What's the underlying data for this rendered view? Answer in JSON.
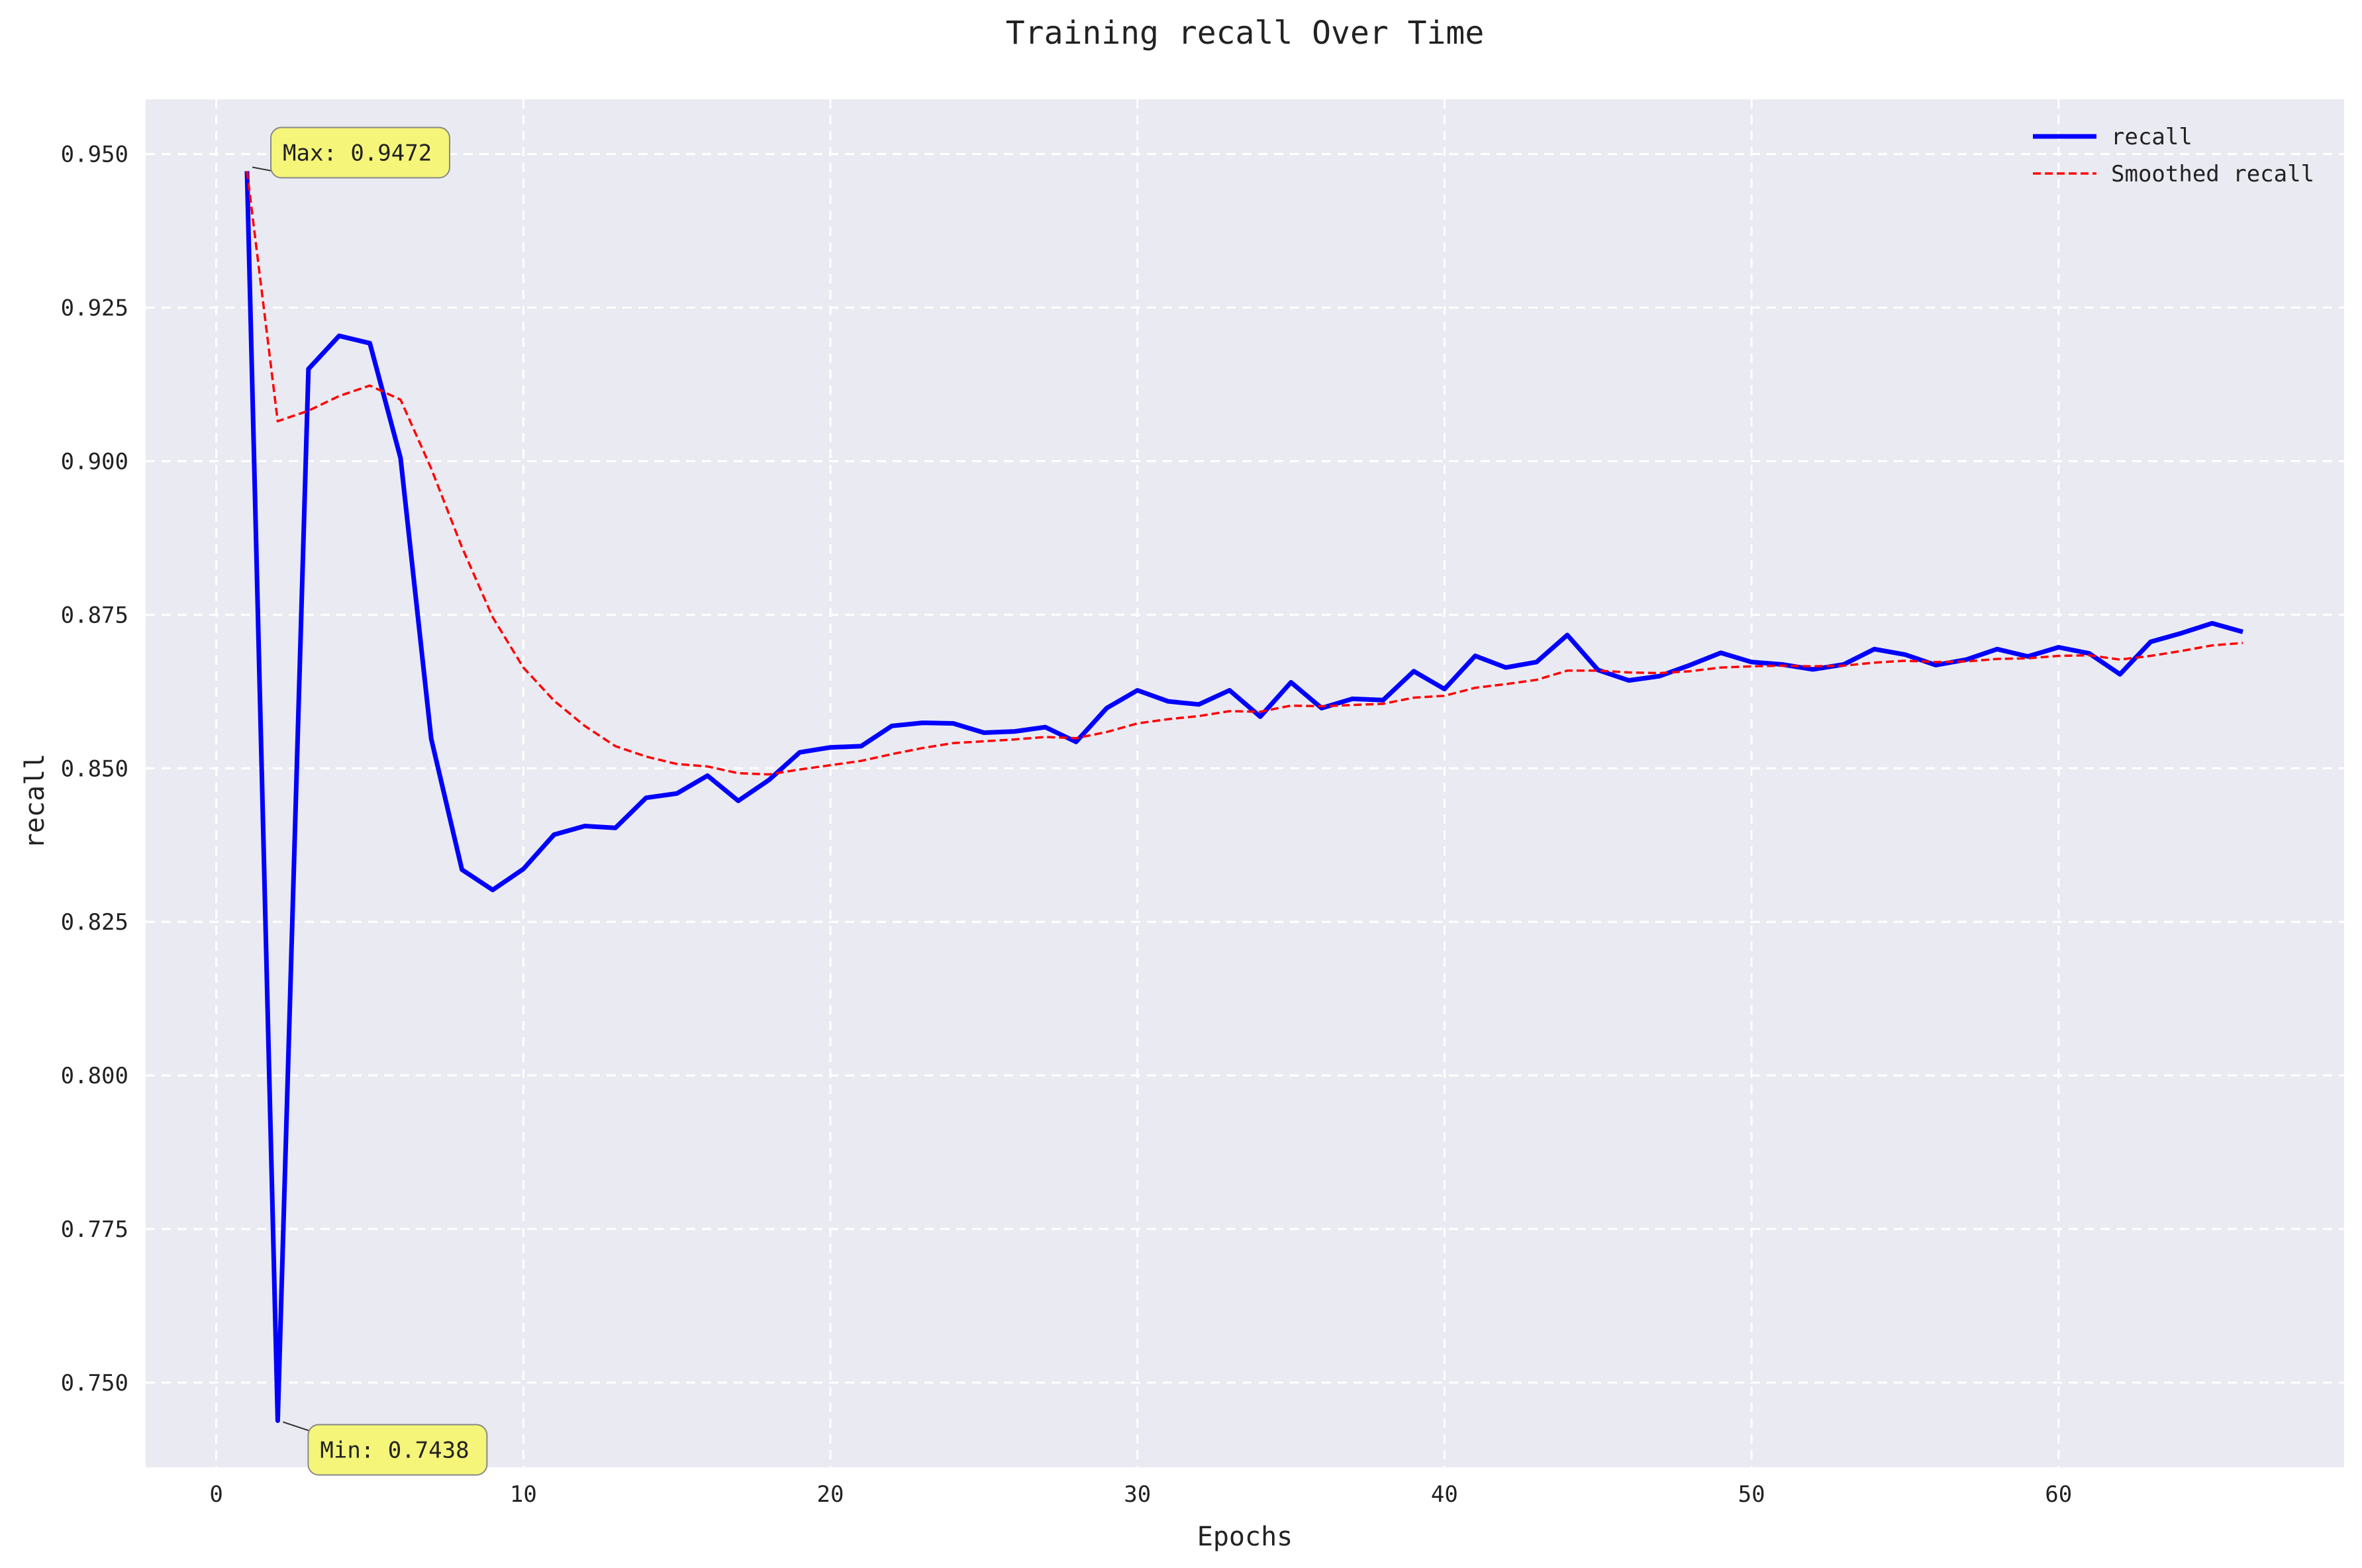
{
  "chart_data": {
    "type": "line",
    "title": "Training recall Over Time",
    "xlabel": "Epochs",
    "ylabel": "recall",
    "xlim": [
      -2.3,
      69.3
    ],
    "ylim": [
      0.7362,
      0.9589
    ],
    "xticks": [
      0,
      10,
      20,
      30,
      40,
      50,
      60
    ],
    "yticks": [
      0.75,
      0.775,
      0.8,
      0.825,
      0.85,
      0.875,
      0.9,
      0.925,
      0.95
    ],
    "ytick_labels": [
      "0.750",
      "0.775",
      "0.800",
      "0.825",
      "0.850",
      "0.875",
      "0.900",
      "0.925",
      "0.950"
    ],
    "grid": true,
    "legend_position": "top-right",
    "background_color": "#eaeaf2",
    "series": [
      {
        "name": "recall",
        "color": "#0000ff",
        "style": "solid",
        "x": [
          1,
          2,
          3,
          4,
          5,
          6,
          7,
          8,
          9,
          10,
          11,
          12,
          13,
          14,
          15,
          16,
          17,
          18,
          19,
          20,
          21,
          22,
          23,
          24,
          25,
          26,
          27,
          28,
          29,
          30,
          31,
          32,
          33,
          34,
          35,
          36,
          37,
          38,
          39,
          40,
          41,
          42,
          43,
          44,
          45,
          46,
          47,
          48,
          49,
          50,
          51,
          52,
          53,
          54,
          55,
          56,
          57,
          58,
          59,
          60,
          61,
          62,
          63,
          64,
          65,
          66
        ],
        "values": [
          0.9472,
          0.7438,
          0.915,
          0.9204,
          0.9192,
          0.9005,
          0.8548,
          0.8335,
          0.8302,
          0.8336,
          0.8392,
          0.8406,
          0.8403,
          0.8452,
          0.8459,
          0.8488,
          0.8447,
          0.8481,
          0.8526,
          0.8534,
          0.8536,
          0.8569,
          0.8574,
          0.8573,
          0.8558,
          0.856,
          0.8567,
          0.8543,
          0.8598,
          0.8627,
          0.8609,
          0.8604,
          0.8627,
          0.8584,
          0.864,
          0.8598,
          0.8613,
          0.8611,
          0.8658,
          0.8629,
          0.8683,
          0.8664,
          0.8673,
          0.8717,
          0.866,
          0.8643,
          0.865,
          0.8668,
          0.8688,
          0.8673,
          0.8669,
          0.8661,
          0.8669,
          0.8694,
          0.8685,
          0.8668,
          0.8677,
          0.8694,
          0.8682,
          0.8697,
          0.8687,
          0.8653,
          0.8706,
          0.872,
          0.8736,
          0.8722
        ]
      },
      {
        "name": "Smoothed recall",
        "color": "#ff0000",
        "style": "dashed",
        "x": [
          1,
          2,
          3,
          4,
          5,
          6,
          7,
          8,
          9,
          10,
          11,
          12,
          13,
          14,
          15,
          16,
          17,
          18,
          19,
          20,
          21,
          22,
          23,
          24,
          25,
          26,
          27,
          28,
          29,
          30,
          31,
          32,
          33,
          34,
          35,
          36,
          37,
          38,
          39,
          40,
          41,
          42,
          43,
          44,
          45,
          46,
          47,
          48,
          49,
          50,
          51,
          52,
          53,
          54,
          55,
          56,
          57,
          58,
          59,
          60,
          61,
          62,
          63,
          64,
          65,
          66
        ],
        "values": [
          0.9472,
          0.9065,
          0.9082,
          0.9106,
          0.9123,
          0.91,
          0.8988,
          0.886,
          0.8746,
          0.8664,
          0.861,
          0.8569,
          0.8536,
          0.8519,
          0.8507,
          0.8503,
          0.8492,
          0.849,
          0.8498,
          0.8505,
          0.8512,
          0.8523,
          0.8533,
          0.8541,
          0.8544,
          0.8547,
          0.8551,
          0.8549,
          0.8559,
          0.8573,
          0.858,
          0.8585,
          0.8593,
          0.8592,
          0.8602,
          0.8601,
          0.8603,
          0.8605,
          0.8615,
          0.8618,
          0.8631,
          0.8637,
          0.8644,
          0.8659,
          0.8659,
          0.8656,
          0.8655,
          0.8658,
          0.8664,
          0.8666,
          0.8667,
          0.8666,
          0.8667,
          0.8672,
          0.8675,
          0.8673,
          0.8674,
          0.8678,
          0.8679,
          0.8683,
          0.8684,
          0.8677,
          0.8683,
          0.8691,
          0.87,
          0.8704
        ]
      }
    ],
    "annotations": [
      {
        "text": "Max: 0.9472",
        "x": 1,
        "y": 0.9472,
        "color": "#f5f57a"
      },
      {
        "text": "Min: 0.7438",
        "x": 2,
        "y": 0.7438,
        "color": "#f5f57a"
      }
    ]
  }
}
